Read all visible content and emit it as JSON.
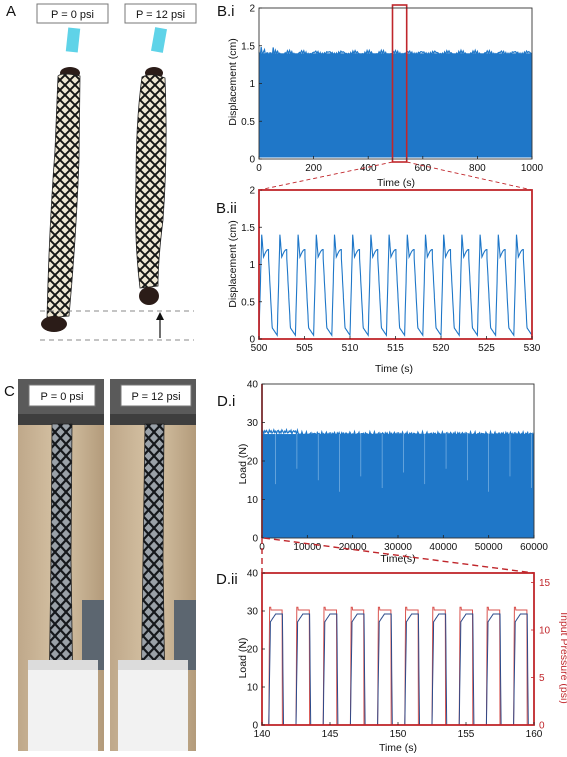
{
  "panel_labels": {
    "A": "A",
    "Bi": "B.i",
    "Bii": "B.ii",
    "C": "C",
    "Di": "D.i",
    "Dii": "D.ii"
  },
  "photo_labels": {
    "a_left": "P = 0 psi",
    "a_right": "P = 12 psi",
    "c_left": "P = 0 psi",
    "c_right": "P = 12 psi"
  },
  "colors": {
    "data_blue": "#1f77c8",
    "accent_red": "#c0262b",
    "pressure_red": "#d9534f",
    "tube_cyan": "#5fd3e8"
  },
  "chart_data": [
    {
      "id": "Bi",
      "type": "area",
      "title": "",
      "xlabel": "Time (s)",
      "ylabel": "Displacement (cm)",
      "xlim": [
        0,
        1000
      ],
      "ylim": [
        0,
        2
      ],
      "xticks": [
        "0",
        "200",
        "400",
        "600",
        "800",
        "1000"
      ],
      "yticks": [
        "0",
        "0.5",
        "1",
        "1.5",
        "2"
      ],
      "description_values": {
        "oscillation_min": 0.02,
        "oscillation_max": 1.4
      },
      "highlight_window": [
        500,
        530
      ]
    },
    {
      "id": "Bii",
      "type": "line",
      "title": "",
      "xlabel": "Time (s)",
      "ylabel": "Displacement (cm)",
      "xlim": [
        500,
        530
      ],
      "ylim": [
        0,
        2
      ],
      "xticks": [
        "500",
        "505",
        "510",
        "515",
        "520",
        "525",
        "530"
      ],
      "yticks": [
        "0",
        "0.5",
        "1",
        "1.5",
        "2"
      ],
      "series": [
        {
          "period_s": 2,
          "peak": 1.4,
          "plateau": 1.1,
          "trough": 0.05
        }
      ]
    },
    {
      "id": "Di",
      "type": "area",
      "title": "",
      "xlabel": "Time(s)",
      "ylabel": "Load (N)",
      "xlim": [
        0,
        60000
      ],
      "ylim": [
        0,
        40
      ],
      "xticks": [
        "0",
        "10000",
        "20000",
        "30000",
        "40000",
        "50000",
        "60000"
      ],
      "yticks": [
        "0",
        "10",
        "20",
        "30",
        "40"
      ],
      "description_values": {
        "oscillation_min": 0,
        "oscillation_max": 27
      }
    },
    {
      "id": "Dii",
      "type": "line",
      "title": "",
      "xlabel": "Time (s)",
      "ylabel": "Load (N)",
      "y2label": "Input Pressure (psi)",
      "xlim": [
        140,
        160
      ],
      "ylim": [
        0,
        40
      ],
      "y2lim": [
        0,
        16
      ],
      "xticks": [
        "140",
        "145",
        "150",
        "155",
        "160"
      ],
      "yticks": [
        "0",
        "10",
        "20",
        "30",
        "40"
      ],
      "y2ticks": [
        "0",
        "5",
        "10",
        "15"
      ],
      "series": [
        {
          "axis": "left",
          "period_s": 2,
          "on_start": 140.5,
          "on_duration_s": 1.0,
          "peak": 29.2,
          "low": 0
        },
        {
          "axis": "right",
          "period_s": 2,
          "on_start": 140.5,
          "on_duration_s": 1.0,
          "peak": 12.1,
          "low": 0
        }
      ]
    }
  ]
}
